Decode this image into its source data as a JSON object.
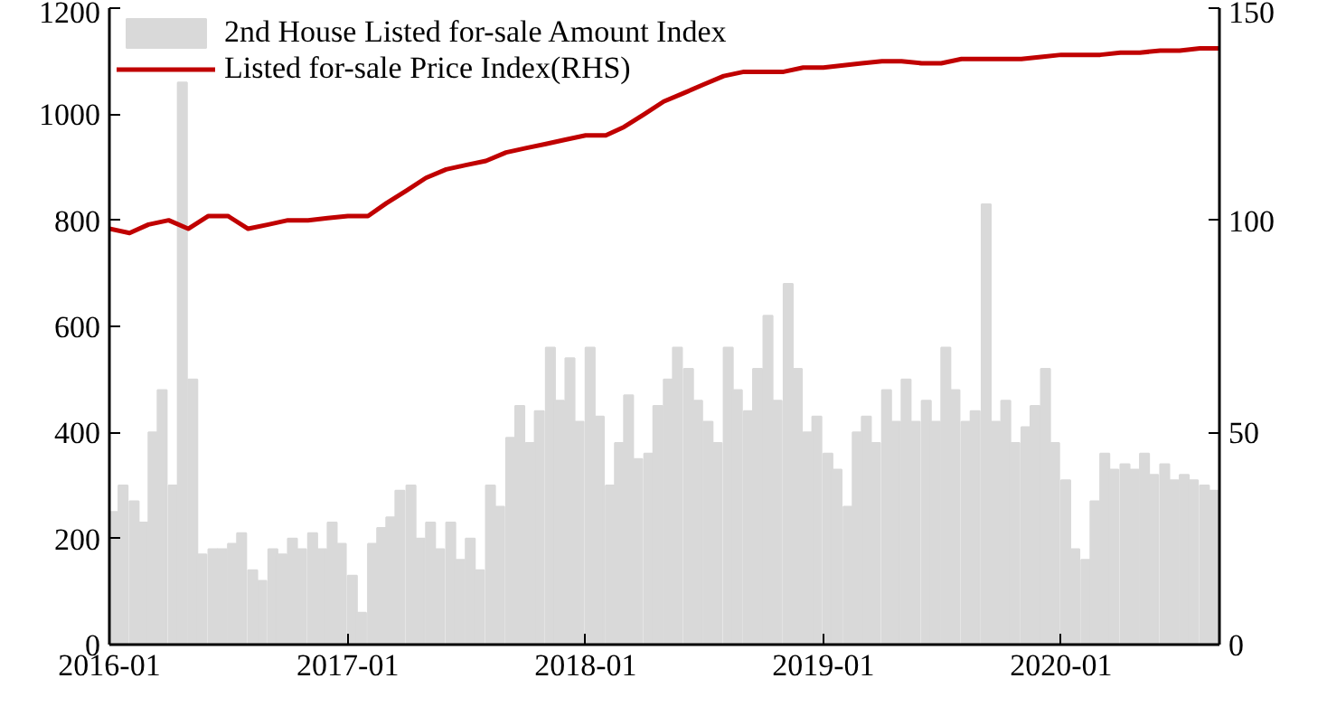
{
  "chart_data": {
    "type": "bar",
    "xlim": [
      "2016-01-01",
      "2020-08-31"
    ],
    "xticks": [
      "2016-01",
      "2017-01",
      "2018-01",
      "2019-01",
      "2020-01"
    ],
    "ylim": [
      0,
      1200
    ],
    "yticks": [
      0,
      200,
      400,
      600,
      800,
      1000,
      1200
    ],
    "y2lim": [
      0,
      150
    ],
    "y2ticks": [
      0,
      50,
      100,
      150
    ],
    "grid": false,
    "legend": "top left",
    "series": [
      {
        "name": "2nd House Listed for-sale Amount Index",
        "color": "#d9d9d9",
        "x": [
          "2016-01-01",
          "2016-01-15",
          "2016-02-01",
          "2016-02-15",
          "2016-03-01",
          "2016-03-15",
          "2016-04-01",
          "2016-04-15",
          "2016-05-01",
          "2016-05-15",
          "2016-06-01",
          "2016-06-15",
          "2016-07-01",
          "2016-07-15",
          "2016-08-01",
          "2016-08-15",
          "2016-09-01",
          "2016-09-15",
          "2016-10-01",
          "2016-10-15",
          "2016-11-01",
          "2016-11-15",
          "2016-12-01",
          "2016-12-15",
          "2017-01-01",
          "2017-01-15",
          "2017-02-01",
          "2017-02-15",
          "2017-03-01",
          "2017-03-15",
          "2017-04-01",
          "2017-04-15",
          "2017-05-01",
          "2017-05-15",
          "2017-06-01",
          "2017-06-15",
          "2017-07-01",
          "2017-07-15",
          "2017-08-01",
          "2017-08-15",
          "2017-09-01",
          "2017-09-15",
          "2017-10-01",
          "2017-10-15",
          "2017-11-01",
          "2017-11-15",
          "2017-12-01",
          "2017-12-15",
          "2018-01-01",
          "2018-01-15",
          "2018-02-01",
          "2018-02-15",
          "2018-03-01",
          "2018-03-15",
          "2018-04-01",
          "2018-04-15",
          "2018-05-01",
          "2018-05-15",
          "2018-06-01",
          "2018-06-15",
          "2018-07-01",
          "2018-07-15",
          "2018-08-01",
          "2018-08-15",
          "2018-09-01",
          "2018-09-15",
          "2018-10-01",
          "2018-10-15",
          "2018-11-01",
          "2018-11-15",
          "2018-12-01",
          "2018-12-15",
          "2019-01-01",
          "2019-01-15",
          "2019-02-01",
          "2019-02-15",
          "2019-03-01",
          "2019-03-15",
          "2019-04-01",
          "2019-04-15",
          "2019-05-01",
          "2019-05-15",
          "2019-06-01",
          "2019-06-15",
          "2019-07-01",
          "2019-07-15",
          "2019-08-01",
          "2019-08-15",
          "2019-09-01",
          "2019-09-15",
          "2019-10-01",
          "2019-10-15",
          "2019-11-01",
          "2019-11-15",
          "2019-12-01",
          "2019-12-15",
          "2020-01-01",
          "2020-01-15",
          "2020-02-01",
          "2020-02-15",
          "2020-03-01",
          "2020-03-15",
          "2020-04-01",
          "2020-04-15",
          "2020-05-01",
          "2020-05-15",
          "2020-06-01",
          "2020-06-15",
          "2020-07-01",
          "2020-07-15",
          "2020-08-01",
          "2020-08-15"
        ],
        "values": [
          250,
          300,
          270,
          230,
          400,
          480,
          300,
          1060,
          500,
          170,
          180,
          180,
          190,
          210,
          140,
          120,
          180,
          170,
          200,
          180,
          210,
          180,
          230,
          190,
          130,
          60,
          190,
          220,
          240,
          290,
          300,
          200,
          230,
          180,
          230,
          160,
          200,
          140,
          300,
          260,
          390,
          450,
          380,
          440,
          560,
          460,
          540,
          420,
          560,
          430,
          300,
          380,
          470,
          350,
          360,
          450,
          500,
          560,
          520,
          460,
          420,
          380,
          560,
          480,
          440,
          520,
          620,
          460,
          680,
          520,
          400,
          430,
          360,
          330,
          260,
          400,
          430,
          380,
          480,
          420,
          500,
          420,
          460,
          420,
          560,
          480,
          420,
          440,
          830,
          420,
          460,
          380,
          410,
          450,
          520,
          380,
          310,
          180,
          160,
          270,
          360,
          330,
          340,
          330,
          360,
          320,
          340,
          310,
          320,
          310,
          300,
          290
        ]
      },
      {
        "name": "Listed for-sale Price Index(RHS)",
        "type": "line",
        "axis": "y2",
        "color": "#c00000",
        "x": [
          "2016-01-01",
          "2016-02-01",
          "2016-03-01",
          "2016-04-01",
          "2016-05-01",
          "2016-06-01",
          "2016-07-01",
          "2016-08-01",
          "2016-09-01",
          "2016-10-01",
          "2016-11-01",
          "2016-12-01",
          "2017-01-01",
          "2017-02-01",
          "2017-03-01",
          "2017-04-01",
          "2017-05-01",
          "2017-06-01",
          "2017-07-01",
          "2017-08-01",
          "2017-09-01",
          "2017-10-01",
          "2017-11-01",
          "2017-12-01",
          "2018-01-01",
          "2018-02-01",
          "2018-03-01",
          "2018-04-01",
          "2018-05-01",
          "2018-06-01",
          "2018-07-01",
          "2018-08-01",
          "2018-09-01",
          "2018-10-01",
          "2018-11-01",
          "2018-12-01",
          "2019-01-01",
          "2019-02-01",
          "2019-03-01",
          "2019-04-01",
          "2019-05-01",
          "2019-06-01",
          "2019-07-01",
          "2019-08-01",
          "2019-09-01",
          "2019-10-01",
          "2019-11-01",
          "2019-12-01",
          "2020-01-01",
          "2020-02-01",
          "2020-03-01",
          "2020-04-01",
          "2020-05-01",
          "2020-06-01",
          "2020-07-01",
          "2020-08-01",
          "2020-08-31"
        ],
        "values": [
          98,
          97,
          99,
          100,
          98,
          101,
          101,
          98,
          99,
          100,
          100,
          100.5,
          101,
          101,
          104,
          107,
          110,
          112,
          113,
          114,
          116,
          117,
          118,
          119,
          120,
          120,
          122,
          125,
          128,
          130,
          132,
          134,
          135,
          135,
          135,
          136,
          136,
          136.5,
          137,
          137.5,
          137.5,
          137,
          137,
          138,
          138,
          138,
          138,
          138.5,
          139,
          139,
          139,
          139.5,
          139.5,
          140,
          140,
          140.5,
          140.5
        ]
      }
    ]
  }
}
